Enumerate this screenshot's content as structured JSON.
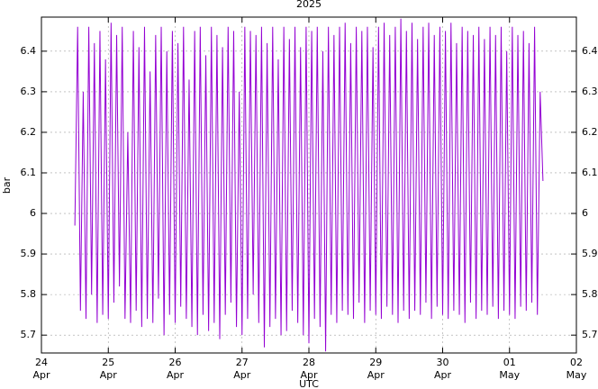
{
  "chart_data": {
    "type": "line",
    "title": "2025",
    "ylabel": "bar",
    "xlabel": "UTC",
    "xlim": [
      "2025-04-24T00:00",
      "2025-05-02T00:00"
    ],
    "xticks": [
      {
        "value": "2025-04-24T00:00",
        "label": [
          "24",
          "Apr"
        ]
      },
      {
        "value": "2025-04-25T00:00",
        "label": [
          "25",
          "Apr"
        ]
      },
      {
        "value": "2025-04-26T00:00",
        "label": [
          "26",
          "Apr"
        ]
      },
      {
        "value": "2025-04-27T00:00",
        "label": [
          "27",
          "Apr"
        ]
      },
      {
        "value": "2025-04-28T00:00",
        "label": [
          "28",
          "Apr"
        ]
      },
      {
        "value": "2025-04-29T00:00",
        "label": [
          "29",
          "Apr"
        ]
      },
      {
        "value": "2025-04-30T00:00",
        "label": [
          "30",
          "Apr"
        ]
      },
      {
        "value": "2025-05-01T00:00",
        "label": [
          "01",
          "May"
        ]
      },
      {
        "value": "2025-05-02T00:00",
        "label": [
          "02",
          "May"
        ]
      }
    ],
    "ylim": [
      5.656,
      6.484
    ],
    "yticks": [
      5.7,
      5.8,
      5.9,
      {
        "value": 6,
        "label": "6"
      },
      6.1,
      6.2,
      6.3,
      6.4
    ],
    "grid": true,
    "series": [
      {
        "color": "#9400d3",
        "x": [
          "2025-04-24T12:00",
          "2025-04-24T13:00",
          "2025-04-24T14:00",
          "2025-04-24T15:00",
          "2025-04-24T16:00",
          "2025-04-24T17:00",
          "2025-04-24T18:00",
          "2025-04-24T19:00",
          "2025-04-24T20:00",
          "2025-04-24T21:00",
          "2025-04-24T22:00",
          "2025-04-24T23:00",
          "2025-04-25T00:00",
          "2025-04-25T01:00",
          "2025-04-25T02:00",
          "2025-04-25T03:00",
          "2025-04-25T04:00",
          "2025-04-25T05:00",
          "2025-04-25T06:00",
          "2025-04-25T07:00",
          "2025-04-25T08:00",
          "2025-04-25T09:00",
          "2025-04-25T10:00",
          "2025-04-25T11:00",
          "2025-04-25T12:00",
          "2025-04-25T13:00",
          "2025-04-25T14:00",
          "2025-04-25T15:00",
          "2025-04-25T16:00",
          "2025-04-25T17:00",
          "2025-04-25T18:00",
          "2025-04-25T19:00",
          "2025-04-25T20:00",
          "2025-04-25T21:00",
          "2025-04-25T22:00",
          "2025-04-25T23:00",
          "2025-04-26T00:00",
          "2025-04-26T01:00",
          "2025-04-26T02:00",
          "2025-04-26T03:00",
          "2025-04-26T04:00",
          "2025-04-26T05:00",
          "2025-04-26T06:00",
          "2025-04-26T07:00",
          "2025-04-26T08:00",
          "2025-04-26T09:00",
          "2025-04-26T10:00",
          "2025-04-26T11:00",
          "2025-04-26T12:00",
          "2025-04-26T13:00",
          "2025-04-26T14:00",
          "2025-04-26T15:00",
          "2025-04-26T16:00",
          "2025-04-26T17:00",
          "2025-04-26T18:00",
          "2025-04-26T19:00",
          "2025-04-26T20:00",
          "2025-04-26T21:00",
          "2025-04-26T22:00",
          "2025-04-26T23:00",
          "2025-04-27T00:00",
          "2025-04-27T01:00",
          "2025-04-27T02:00",
          "2025-04-27T03:00",
          "2025-04-27T04:00",
          "2025-04-27T05:00",
          "2025-04-27T06:00",
          "2025-04-27T07:00",
          "2025-04-27T08:00",
          "2025-04-27T09:00",
          "2025-04-27T10:00",
          "2025-04-27T11:00",
          "2025-04-27T12:00",
          "2025-04-27T13:00",
          "2025-04-27T14:00",
          "2025-04-27T15:00",
          "2025-04-27T16:00",
          "2025-04-27T17:00",
          "2025-04-27T18:00",
          "2025-04-27T19:00",
          "2025-04-27T20:00",
          "2025-04-27T21:00",
          "2025-04-27T22:00",
          "2025-04-27T23:00",
          "2025-04-28T00:00",
          "2025-04-28T01:00",
          "2025-04-28T02:00",
          "2025-04-28T03:00",
          "2025-04-28T04:00",
          "2025-04-28T05:00",
          "2025-04-28T06:00",
          "2025-04-28T07:00",
          "2025-04-28T08:00",
          "2025-04-28T09:00",
          "2025-04-28T10:00",
          "2025-04-28T11:00",
          "2025-04-28T12:00",
          "2025-04-28T13:00",
          "2025-04-28T14:00",
          "2025-04-28T15:00",
          "2025-04-28T16:00",
          "2025-04-28T17:00",
          "2025-04-28T18:00",
          "2025-04-28T19:00",
          "2025-04-28T20:00",
          "2025-04-28T21:00",
          "2025-04-28T22:00",
          "2025-04-28T23:00",
          "2025-04-29T00:00",
          "2025-04-29T01:00",
          "2025-04-29T02:00",
          "2025-04-29T03:00",
          "2025-04-29T04:00",
          "2025-04-29T05:00",
          "2025-04-29T06:00",
          "2025-04-29T07:00",
          "2025-04-29T08:00",
          "2025-04-29T09:00",
          "2025-04-29T10:00",
          "2025-04-29T11:00",
          "2025-04-29T12:00",
          "2025-04-29T13:00",
          "2025-04-29T14:00",
          "2025-04-29T15:00",
          "2025-04-29T16:00",
          "2025-04-29T17:00",
          "2025-04-29T18:00",
          "2025-04-29T19:00",
          "2025-04-29T20:00",
          "2025-04-29T21:00",
          "2025-04-29T22:00",
          "2025-04-29T23:00",
          "2025-04-30T00:00",
          "2025-04-30T01:00",
          "2025-04-30T02:00",
          "2025-04-30T03:00",
          "2025-04-30T04:00",
          "2025-04-30T05:00",
          "2025-04-30T06:00",
          "2025-04-30T07:00",
          "2025-04-30T08:00",
          "2025-04-30T09:00",
          "2025-04-30T10:00",
          "2025-04-30T11:00",
          "2025-04-30T12:00",
          "2025-04-30T13:00",
          "2025-04-30T14:00",
          "2025-04-30T15:00",
          "2025-04-30T16:00",
          "2025-04-30T17:00",
          "2025-04-30T18:00",
          "2025-04-30T19:00",
          "2025-04-30T20:00",
          "2025-04-30T21:00",
          "2025-04-30T22:00",
          "2025-04-30T23:00",
          "2025-05-01T00:00",
          "2025-05-01T01:00",
          "2025-05-01T02:00",
          "2025-05-01T03:00",
          "2025-05-01T04:00",
          "2025-05-01T05:00",
          "2025-05-01T06:00",
          "2025-05-01T07:00",
          "2025-05-01T08:00",
          "2025-05-01T09:00",
          "2025-05-01T10:00",
          "2025-05-01T11:00",
          "2025-05-01T12:00"
        ],
        "values": [
          5.97,
          6.46,
          5.76,
          6.3,
          5.74,
          6.46,
          5.8,
          6.42,
          5.73,
          6.45,
          5.75,
          6.38,
          5.74,
          6.47,
          5.78,
          6.44,
          5.82,
          6.46,
          5.74,
          6.2,
          5.73,
          6.45,
          5.76,
          6.41,
          5.72,
          6.46,
          5.74,
          6.35,
          5.73,
          6.44,
          5.79,
          6.46,
          5.7,
          6.4,
          5.75,
          6.45,
          5.73,
          6.42,
          5.77,
          6.46,
          5.74,
          6.33,
          5.72,
          6.45,
          5.7,
          6.46,
          5.75,
          6.39,
          5.71,
          6.46,
          5.73,
          6.44,
          5.69,
          6.41,
          5.75,
          6.46,
          5.78,
          6.45,
          5.72,
          6.3,
          5.7,
          6.46,
          5.74,
          6.45,
          5.8,
          6.44,
          5.73,
          6.46,
          5.67,
          6.42,
          5.72,
          6.46,
          5.74,
          6.38,
          5.7,
          6.46,
          5.71,
          6.43,
          5.76,
          6.46,
          5.73,
          6.41,
          5.7,
          6.46,
          5.68,
          6.45,
          5.74,
          6.46,
          5.72,
          6.4,
          5.66,
          6.46,
          5.75,
          6.44,
          5.73,
          6.46,
          5.76,
          6.47,
          5.75,
          6.42,
          5.74,
          6.46,
          5.78,
          6.45,
          5.73,
          6.46,
          5.76,
          6.41,
          5.75,
          6.46,
          5.74,
          6.47,
          5.77,
          6.44,
          5.75,
          6.46,
          5.73,
          6.48,
          5.76,
          6.45,
          5.74,
          6.47,
          5.76,
          6.43,
          5.75,
          6.46,
          5.78,
          6.47,
          5.74,
          6.44,
          5.77,
          6.46,
          5.75,
          6.45,
          5.74,
          6.47,
          5.76,
          6.42,
          5.75,
          6.46,
          5.73,
          6.45,
          5.78,
          6.44,
          5.74,
          6.46,
          5.76,
          6.43,
          5.75,
          6.46,
          5.77,
          6.44,
          5.74,
          6.46,
          5.76,
          6.4,
          5.75,
          6.46,
          5.74,
          6.44,
          5.77,
          6.45,
          5.76,
          6.42,
          5.78,
          6.46,
          5.75,
          6.3,
          6.08
        ]
      }
    ]
  }
}
